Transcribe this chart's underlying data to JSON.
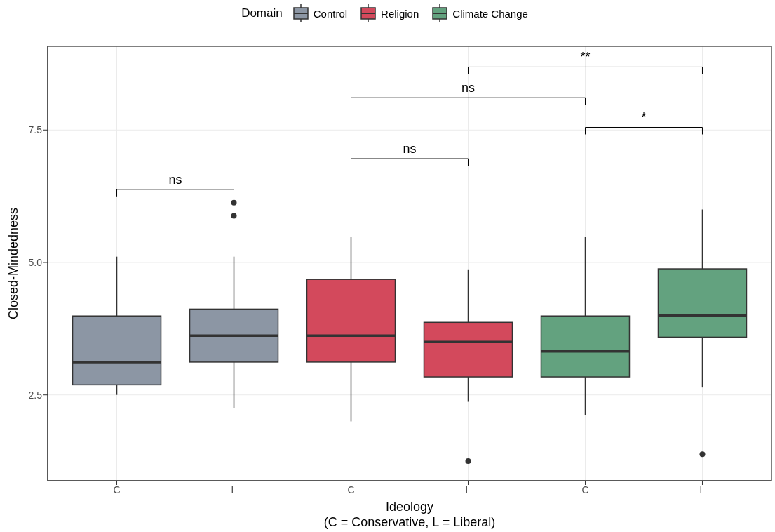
{
  "chart_data": {
    "type": "box",
    "legend_title": "Domain",
    "legend": "top",
    "xlabel": "Ideology\n(C = Conservative, L = Liberal)",
    "ylabel": "Closed-Mindedness",
    "categories": [
      "C",
      "L",
      "C",
      "L",
      "C",
      "L"
    ],
    "ylim": [
      0.88,
      9.08
    ],
    "yticks": [
      {
        "value": 2.5,
        "label": "2.5"
      },
      {
        "value": 5,
        "label": "5.0"
      },
      {
        "value": 7.5,
        "label": "7.5"
      }
    ],
    "grid": true,
    "series": [
      {
        "name": "Control",
        "color": "#8c96a4",
        "boxes": [
          {
            "low": 2.5,
            "q1": 2.69,
            "median": 3.12,
            "q3": 3.99,
            "high": 5.11
          },
          {
            "low": 2.25,
            "q1": 3.12,
            "median": 3.62,
            "q3": 4.12,
            "high": 5.11,
            "outliers": [
              5.88,
              6.13
            ]
          },
          null,
          null,
          null,
          null
        ]
      },
      {
        "name": "Religion",
        "color": "#d3495c",
        "boxes": [
          null,
          null,
          {
            "low": 2.0,
            "q1": 3.12,
            "median": 3.62,
            "q3": 4.68,
            "high": 5.49
          },
          {
            "low": 2.37,
            "q1": 2.84,
            "median": 3.5,
            "q3": 3.87,
            "high": 4.87,
            "outliers": [
              1.25
            ]
          },
          null,
          null
        ]
      },
      {
        "name": "Climate Change",
        "color": "#63a27f",
        "boxes": [
          null,
          null,
          null,
          null,
          {
            "low": 2.12,
            "q1": 2.84,
            "median": 3.32,
            "q3": 3.99,
            "high": 5.49
          },
          {
            "low": 2.64,
            "q1": 3.59,
            "median": 4.0,
            "q3": 4.88,
            "high": 6.0,
            "outliers": [
              1.38
            ]
          }
        ]
      }
    ],
    "annotations": [
      "ns",
      "ns",
      "*",
      "ns",
      "**"
    ]
  }
}
